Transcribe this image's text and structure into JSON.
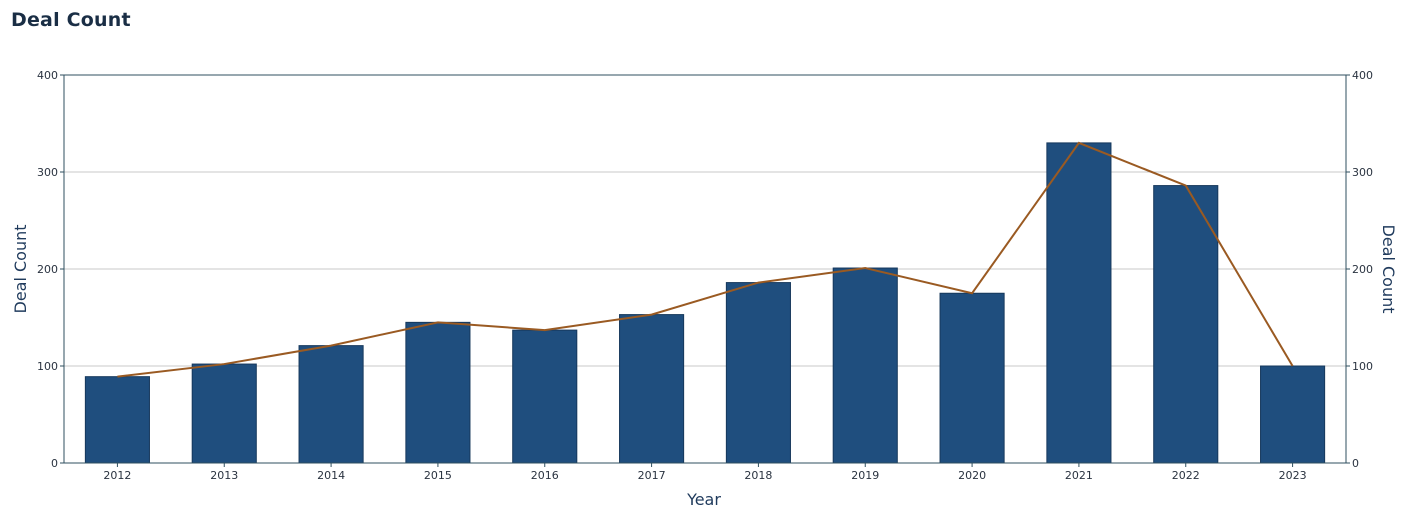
{
  "title": "Deal Count",
  "colors": {
    "bar": "#1f4e7e",
    "line": "#9a5a22",
    "grid": "#c8c8c8",
    "axis": "#2f4f5f"
  },
  "chart_data": {
    "type": "bar",
    "categories": [
      "2012",
      "2013",
      "2014",
      "2015",
      "2016",
      "2017",
      "2018",
      "2019",
      "2020",
      "2021",
      "2022",
      "2023"
    ],
    "series": [
      {
        "type": "bar",
        "values": [
          89,
          102,
          121,
          145,
          137,
          153,
          186,
          201,
          175,
          330,
          286,
          100
        ]
      },
      {
        "type": "line",
        "values": [
          89,
          102,
          121,
          145,
          137,
          153,
          186,
          201,
          175,
          330,
          286,
          100
        ]
      }
    ],
    "xlabel": "Year",
    "ylabel": "Deal Count",
    "y2label": "Deal Count",
    "ylim": [
      0,
      400
    ],
    "yticks": [
      0,
      100,
      200,
      300,
      400
    ],
    "grid": true
  }
}
